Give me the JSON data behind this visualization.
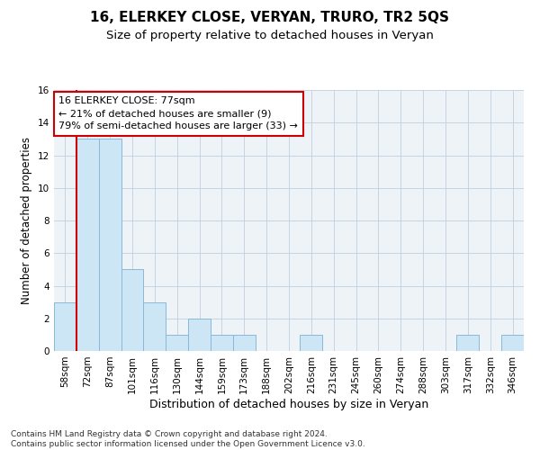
{
  "title": "16, ELERKEY CLOSE, VERYAN, TRURO, TR2 5QS",
  "subtitle": "Size of property relative to detached houses in Veryan",
  "xlabel": "Distribution of detached houses by size in Veryan",
  "ylabel": "Number of detached properties",
  "categories": [
    "58sqm",
    "72sqm",
    "87sqm",
    "101sqm",
    "116sqm",
    "130sqm",
    "144sqm",
    "159sqm",
    "173sqm",
    "188sqm",
    "202sqm",
    "216sqm",
    "231sqm",
    "245sqm",
    "260sqm",
    "274sqm",
    "288sqm",
    "303sqm",
    "317sqm",
    "332sqm",
    "346sqm"
  ],
  "values": [
    3,
    13,
    13,
    5,
    3,
    1,
    2,
    1,
    1,
    0,
    0,
    1,
    0,
    0,
    0,
    0,
    0,
    0,
    1,
    0,
    1
  ],
  "bar_color": "#cde6f5",
  "bar_edgecolor": "#8ab8d8",
  "property_line_x": 1,
  "property_line_color": "#cc0000",
  "annotation_text": "16 ELERKEY CLOSE: 77sqm\n← 21% of detached houses are smaller (9)\n79% of semi-detached houses are larger (33) →",
  "annotation_box_color": "#cc0000",
  "ylim": [
    0,
    16
  ],
  "yticks": [
    0,
    2,
    4,
    6,
    8,
    10,
    12,
    14,
    16
  ],
  "grid_color": "#c0d0e0",
  "background_color": "#eef3f8",
  "footnote": "Contains HM Land Registry data © Crown copyright and database right 2024.\nContains public sector information licensed under the Open Government Licence v3.0.",
  "title_fontsize": 11,
  "subtitle_fontsize": 9.5,
  "xlabel_fontsize": 9,
  "ylabel_fontsize": 8.5,
  "tick_fontsize": 7.5,
  "annotation_fontsize": 8,
  "footnote_fontsize": 6.5
}
